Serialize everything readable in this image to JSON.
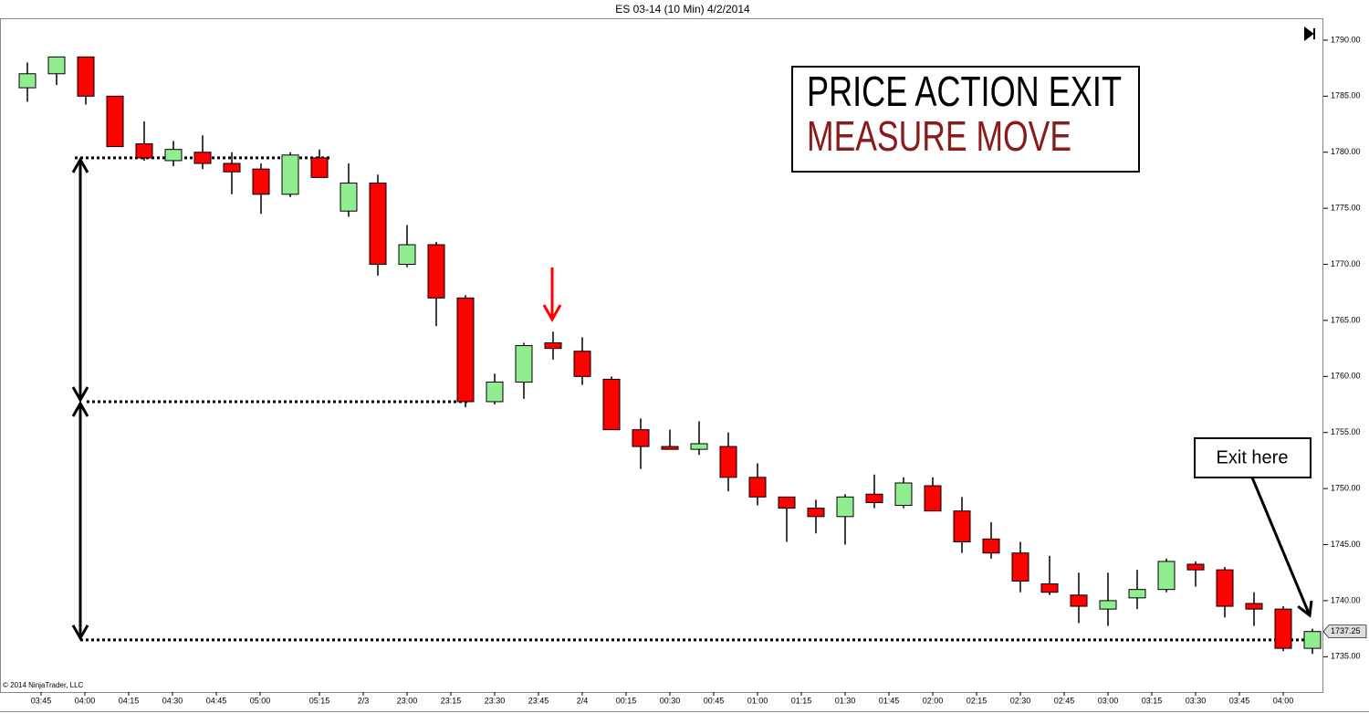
{
  "chart_data": {
    "type": "candlestick",
    "title": "ES 03-14 (10 Min)  4/2/2014",
    "copyright": "© 2014 NinjaTrader, LLC",
    "annotation_title": "PRICE ACTION EXIT",
    "annotation_subtitle": "MEASURE MOVE",
    "callout": "Exit here",
    "x_labels": [
      "03:45",
      "04:00",
      "04:15",
      "04:30",
      "04:45",
      "05:00",
      "05:15",
      "2/3",
      "23:00",
      "23:15",
      "23:30",
      "23:45",
      "2/4",
      "00:15",
      "00:30",
      "00:45",
      "01:00",
      "01:15",
      "01:30",
      "01:45",
      "02:00",
      "02:15",
      "02:30",
      "02:45",
      "03:00",
      "03:15",
      "03:30",
      "03:45",
      "04:00"
    ],
    "up_color": "#90ee90",
    "down_color": "#ff0000",
    "open": [
      1785.75,
      1787,
      1788.5,
      1785,
      1780.75,
      1779.25,
      1780,
      1779,
      1778.5,
      1776.25,
      1779.5,
      1774.75,
      1777.25,
      1770,
      1771.75,
      1767,
      1757.75,
      1759.5,
      1763,
      1762.25,
      1759.75,
      1755.25,
      1753.75,
      1753.5,
      1753.75,
      1751,
      1749.25,
      1748.25,
      1747.5,
      1749.5,
      1748.5,
      1750.25,
      1748,
      1745.5,
      1744.25,
      1741.5,
      1740.5,
      1739.25,
      1740.25,
      1741,
      1743.25,
      1742.75,
      1739.75,
      1739.25,
      1735.75
    ],
    "high": [
      1788,
      1788.5,
      1788.5,
      1785,
      1782.75,
      1781,
      1781.5,
      1780,
      1779,
      1780,
      1780.25,
      1779,
      1778,
      1773.5,
      1772,
      1767.25,
      1760.25,
      1763,
      1764,
      1763.5,
      1760,
      1756.25,
      1755.25,
      1756,
      1755,
      1752.25,
      1749.25,
      1749,
      1749.5,
      1751.25,
      1751,
      1751,
      1749.25,
      1747,
      1745.25,
      1744,
      1742.5,
      1742.5,
      1742.75,
      1743.75,
      1743.5,
      1743,
      1740.75,
      1739.5,
      1737.5
    ],
    "low": [
      1784.5,
      1786,
      1784.25,
      1780.5,
      1779.25,
      1778.75,
      1778.5,
      1776.25,
      1774.5,
      1776,
      1777.75,
      1774.25,
      1769,
      1769.75,
      1764.5,
      1757.25,
      1757.5,
      1758,
      1761.5,
      1759.25,
      1755.25,
      1751.75,
      1753.5,
      1753,
      1749.75,
      1748.5,
      1745.25,
      1746,
      1745,
      1748.25,
      1748.25,
      1748,
      1744.25,
      1743.75,
      1740.75,
      1740.5,
      1738,
      1737.75,
      1739.25,
      1740.75,
      1741.25,
      1738.5,
      1737.75,
      1735.5,
      1735.25
    ],
    "close": [
      1787,
      1788.5,
      1785,
      1780.5,
      1779.5,
      1780.25,
      1779,
      1778.25,
      1776.25,
      1779.75,
      1777.75,
      1777.25,
      1770,
      1771.75,
      1767,
      1757.75,
      1759.5,
      1762.75,
      1762.5,
      1760,
      1755.25,
      1753.75,
      1753.5,
      1754,
      1751,
      1749.25,
      1748.25,
      1747.5,
      1749.25,
      1748.75,
      1750.5,
      1748,
      1745.25,
      1744.25,
      1741.75,
      1740.75,
      1739.5,
      1740,
      1741,
      1743.5,
      1742.75,
      1739.5,
      1739.25,
      1735.75,
      1737.25
    ],
    "levels": [
      1779.5,
      1757.75,
      1736.5
    ],
    "ylim": [
      1731.85,
      1791.95
    ],
    "yticks": [
      {
        "value": 1735,
        "label": "1735.00"
      },
      {
        "value": 1740,
        "label": "1740.00"
      },
      {
        "value": 1745,
        "label": "1745.00"
      },
      {
        "value": 1750,
        "label": "1750.00"
      },
      {
        "value": 1755,
        "label": "1755.00"
      },
      {
        "value": 1760,
        "label": "1760.00"
      },
      {
        "value": 1765,
        "label": "1765.00"
      },
      {
        "value": 1770,
        "label": "1770.00"
      },
      {
        "value": 1775,
        "label": "1775.00"
      },
      {
        "value": 1780,
        "label": "1780.00"
      },
      {
        "value": 1785,
        "label": "1785.00"
      },
      {
        "value": 1790,
        "label": "1790.00"
      }
    ]
  }
}
